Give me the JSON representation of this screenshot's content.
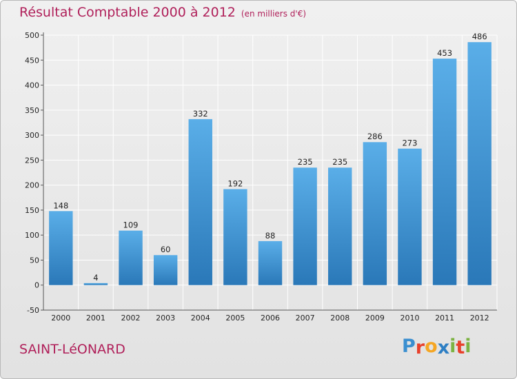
{
  "header": {
    "title": "Résultat Comptable 2000 à 2012",
    "subtitle": "(en milliers d'€)"
  },
  "footer": {
    "commune": "SAINT-LéONARD",
    "logo": {
      "text": "Proxiti",
      "letters": [
        {
          "char": "P",
          "color": "#3a8fd0"
        },
        {
          "char": "r",
          "color": "#e8412c"
        },
        {
          "char": "o",
          "color": "#f5a623"
        },
        {
          "char": "x",
          "color": "#2e7fc4"
        },
        {
          "char": "i",
          "color": "#7cb342"
        },
        {
          "char": "t",
          "color": "#e8412c"
        },
        {
          "char": "i",
          "color": "#7cb342"
        }
      ]
    }
  },
  "colors": {
    "title": "#b0205a",
    "bar_top": "#5aaee8",
    "bar_bottom": "#2a78b8",
    "grid": "#ffffff",
    "axis": "#555555"
  },
  "chart_data": {
    "type": "bar",
    "categories": [
      "2000",
      "2001",
      "2002",
      "2003",
      "2004",
      "2005",
      "2006",
      "2007",
      "2008",
      "2009",
      "2010",
      "2011",
      "2012"
    ],
    "values": [
      148,
      4,
      109,
      60,
      332,
      192,
      88,
      235,
      235,
      286,
      273,
      453,
      486
    ],
    "ylim": [
      -50,
      500
    ],
    "yticks": [
      "-50",
      "0",
      "50",
      "100",
      "150",
      "200",
      "250",
      "300",
      "350",
      "400",
      "450",
      "500"
    ],
    "grid": true,
    "xlabel": "",
    "ylabel": ""
  }
}
